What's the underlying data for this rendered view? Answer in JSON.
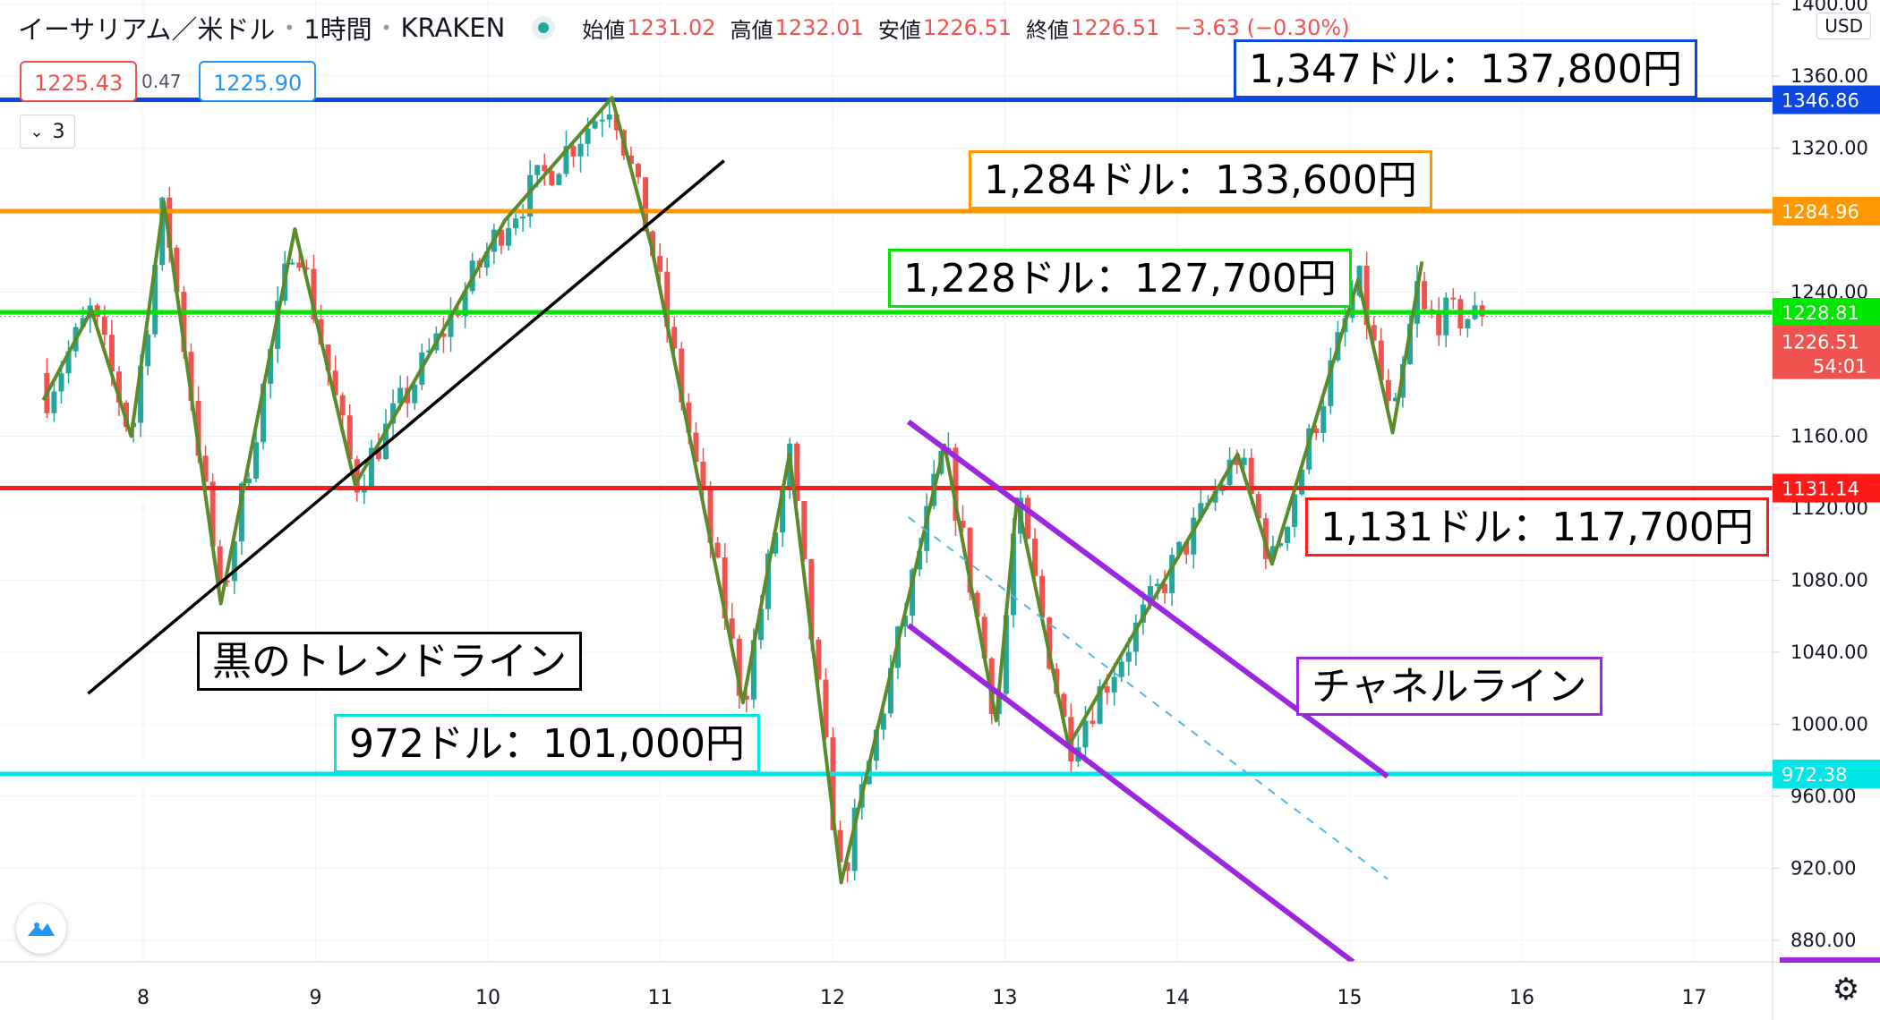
{
  "header": {
    "symbol": "イーサリアム／米ドル",
    "interval": "1時間",
    "exchange": "KRAKEN",
    "open_label": "始値",
    "open_value": "1231.02",
    "high_label": "高値",
    "high_value": "1232.01",
    "low_label": "安値",
    "low_value": "1226.51",
    "close_label": "終値",
    "close_value": "1226.51",
    "change": "−3.63 (−0.30%)"
  },
  "quote": {
    "sell": "1225.43",
    "spread": "0.47",
    "buy": "1225.90"
  },
  "indicator_toggle": {
    "label": "3"
  },
  "axis_currency": "USD",
  "colors": {
    "up": "#26a69a",
    "down": "#ef5350",
    "blue_line": "#0d47e3",
    "orange_line": "#ff9800",
    "green_line": "#00e600",
    "red_line": "#ff1a1a",
    "cyan_line": "#00e6e6",
    "purple": "#9c27e0",
    "zigzag": "#5a8a2a",
    "trend": "#000000"
  },
  "annotations": [
    {
      "text": "1,347ドル：137,800円",
      "color": "#0d47e3"
    },
    {
      "text": "1,284ドル：133,600円",
      "color": "#ff9800"
    },
    {
      "text": "1,228ドル：127,700円",
      "color": "#00e600"
    },
    {
      "text": "1,131ドル：117,700円",
      "color": "#ff1a1a"
    },
    {
      "text": "黒のトレンドライン",
      "color": "#000000"
    },
    {
      "text": "チャネルライン",
      "color": "#9c27e0"
    },
    {
      "text": "972ドル：101,000円",
      "color": "#00e6e6"
    }
  ],
  "chart_data": {
    "type": "candlestick",
    "x_ticks": [
      "8",
      "9",
      "10",
      "11",
      "12",
      "13",
      "14",
      "15",
      "16",
      "17"
    ],
    "y_ticks": [
      "880.00",
      "920.00",
      "960.00",
      "1000.00",
      "1040.00",
      "1080.00",
      "1120.00",
      "1160.00",
      "1240.00",
      "1320.00",
      "1360.00",
      "1400.00"
    ],
    "ylim": [
      872,
      1400
    ],
    "horizontal_levels": [
      {
        "value": 1346.86,
        "label": "1346.86",
        "color": "#0d47e3"
      },
      {
        "value": 1284.96,
        "label": "1284.96",
        "color": "#ff9800"
      },
      {
        "value": 1228.81,
        "label": "1228.81",
        "color": "#00e600"
      },
      {
        "value": 1131.14,
        "label": "1131.14",
        "color": "#ff1a1a"
      },
      {
        "value": 972.38,
        "label": "972.38",
        "color": "#00e6e6"
      }
    ],
    "last_price": {
      "value": 1226.51,
      "label": "1226.51",
      "countdown": "54:01"
    },
    "zigzag": [
      [
        7.42,
        1180
      ],
      [
        7.7,
        1230
      ],
      [
        7.93,
        1160
      ],
      [
        8.12,
        1290
      ],
      [
        8.45,
        1067
      ],
      [
        8.88,
        1275
      ],
      [
        9.23,
        1133
      ],
      [
        9.6,
        1195
      ],
      [
        10.1,
        1280
      ],
      [
        10.72,
        1348
      ],
      [
        10.95,
        1265
      ],
      [
        11.48,
        1012
      ],
      [
        11.75,
        1150
      ],
      [
        12.05,
        912
      ],
      [
        12.65,
        1155
      ],
      [
        12.95,
        1002
      ],
      [
        13.07,
        1125
      ],
      [
        13.37,
        988
      ],
      [
        14.35,
        1150
      ],
      [
        14.55,
        1089
      ],
      [
        15.05,
        1247
      ],
      [
        15.25,
        1162
      ],
      [
        15.42,
        1257
      ]
    ],
    "black_trendline": [
      [
        7.68,
        1017
      ],
      [
        11.37,
        1313
      ]
    ],
    "channel_upper": [
      [
        12.44,
        1168
      ],
      [
        15.22,
        971
      ]
    ],
    "channel_lower": [
      [
        12.44,
        1055
      ],
      [
        15.02,
        868
      ]
    ],
    "channel_mid_dashed": [
      [
        12.44,
        1115
      ],
      [
        15.22,
        914
      ]
    ],
    "price_range": {
      "x_start": 7.42,
      "x_end": 15.79,
      "start": 1195,
      "end": 1226.51,
      "min": 912,
      "max": 1348
    },
    "candle_count": 200
  }
}
